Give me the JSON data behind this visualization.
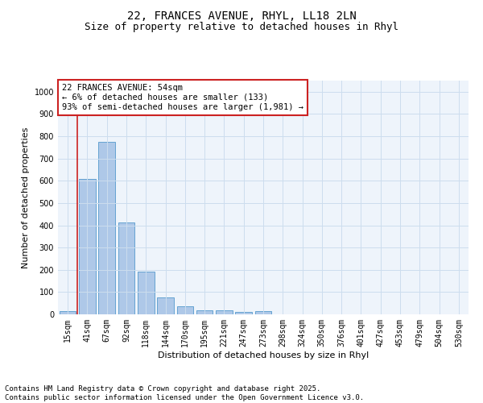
{
  "title_line1": "22, FRANCES AVENUE, RHYL, LL18 2LN",
  "title_line2": "Size of property relative to detached houses in Rhyl",
  "xlabel": "Distribution of detached houses by size in Rhyl",
  "ylabel": "Number of detached properties",
  "categories": [
    "15sqm",
    "41sqm",
    "67sqm",
    "92sqm",
    "118sqm",
    "144sqm",
    "170sqm",
    "195sqm",
    "221sqm",
    "247sqm",
    "273sqm",
    "298sqm",
    "324sqm",
    "350sqm",
    "376sqm",
    "401sqm",
    "427sqm",
    "453sqm",
    "479sqm",
    "504sqm",
    "530sqm"
  ],
  "values": [
    15,
    608,
    775,
    413,
    193,
    77,
    38,
    18,
    18,
    12,
    15,
    0,
    0,
    0,
    0,
    0,
    0,
    0,
    0,
    0,
    0
  ],
  "bar_color": "#aec8e8",
  "bar_edge_color": "#5599cc",
  "vline_x": 0.5,
  "vline_color": "#cc2222",
  "annotation_text": "22 FRANCES AVENUE: 54sqm\n← 6% of detached houses are smaller (133)\n93% of semi-detached houses are larger (1,981) →",
  "annotation_box_color": "#cc2222",
  "ylim": [
    0,
    1050
  ],
  "yticks": [
    0,
    100,
    200,
    300,
    400,
    500,
    600,
    700,
    800,
    900,
    1000
  ],
  "grid_color": "#ccddee",
  "background_color": "#eef4fb",
  "footer_line1": "Contains HM Land Registry data © Crown copyright and database right 2025.",
  "footer_line2": "Contains public sector information licensed under the Open Government Licence v3.0.",
  "title_fontsize": 10,
  "subtitle_fontsize": 9,
  "axis_label_fontsize": 8,
  "tick_fontsize": 7,
  "annotation_fontsize": 7.5,
  "footer_fontsize": 6.5
}
